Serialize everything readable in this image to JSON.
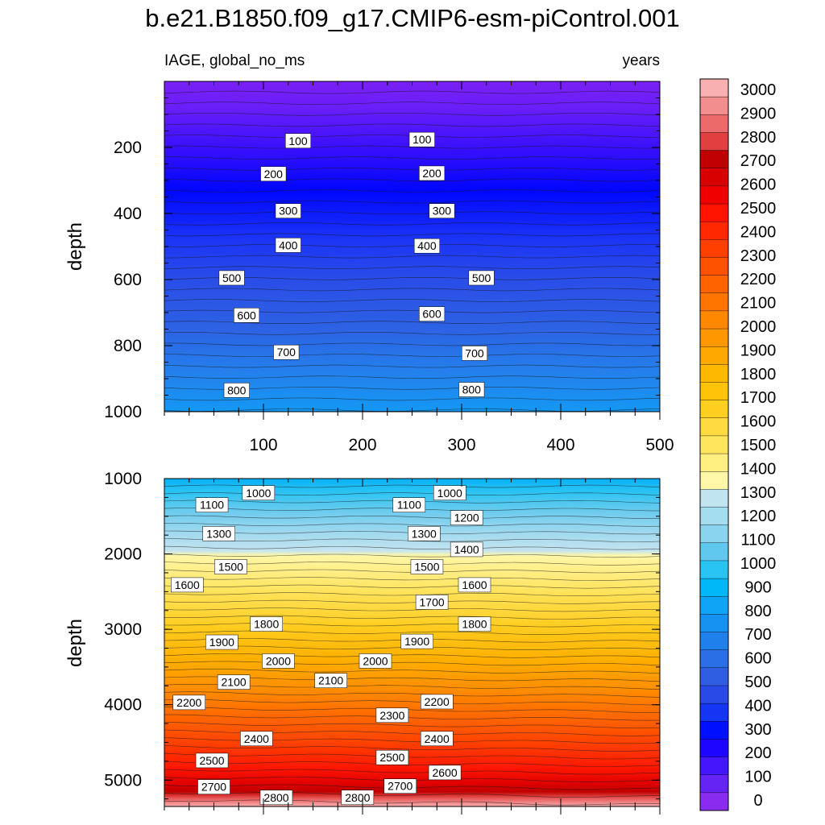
{
  "title": "b.e21.B1850.f09_g17.CMIP6-esm-piControl.001",
  "chart_data": {
    "type": "contour",
    "variable": "IAGE, global_no_ms",
    "units": "years",
    "color_levels": [
      0,
      100,
      200,
      300,
      400,
      500,
      600,
      700,
      800,
      900,
      1000,
      1100,
      1200,
      1300,
      1400,
      1500,
      1600,
      1700,
      1800,
      1900,
      2000,
      2100,
      2200,
      2300,
      2400,
      2500,
      2600,
      2700,
      2800,
      2900,
      3000
    ],
    "colorbar_labels": [
      "0",
      "100",
      "200",
      "300",
      "400",
      "500",
      "600",
      "700",
      "800",
      "900",
      "1000",
      "1100",
      "1200",
      "1300",
      "1400",
      "1500",
      "1600",
      "1700",
      "1800",
      "1900",
      "2000",
      "2100",
      "2200",
      "2300",
      "2400",
      "2500",
      "2600",
      "2700",
      "2800",
      "2900",
      "3000"
    ],
    "colorbar_colors": [
      "#8a2cf0",
      "#6624f4",
      "#4316fb",
      "#1d05ff",
      "#0010ff",
      "#1436f4",
      "#2a4ae8",
      "#2f5ee3",
      "#2a6fe6",
      "#1f80ec",
      "#1692f2",
      "#10a4f6",
      "#00b8f8",
      "#2ac4f3",
      "#60c8ef",
      "#8ad4ef",
      "#a4dcf0",
      "#c0e4f0",
      "#fff7a8",
      "#ffee80",
      "#ffe45e",
      "#ffda40",
      "#ffcf20",
      "#ffc30a",
      "#ffb800",
      "#ffa900",
      "#ff9800",
      "#ff8800",
      "#ff7500",
      "#ff6300",
      "#ff5200",
      "#ff3f00",
      "#ff2800",
      "#ff1200",
      "#f00000",
      "#d80000",
      "#c00000",
      "#e04040",
      "#ec6a6a",
      "#f28e8e",
      "#f8b0b0"
    ],
    "top_panel": {
      "ylabel": "depth",
      "ylim": [
        0,
        1000
      ],
      "y_ticks": [
        "200",
        "400",
        "600",
        "800",
        "1000"
      ],
      "xlim": [
        0,
        500
      ],
      "x_ticks": [
        "100",
        "200",
        "300",
        "400",
        "500"
      ],
      "contour_labels": [
        {
          "text": "100",
          "x": 135,
          "d": 180
        },
        {
          "text": "100",
          "x": 260,
          "d": 176
        },
        {
          "text": "200",
          "x": 110,
          "d": 280
        },
        {
          "text": "200",
          "x": 270,
          "d": 278
        },
        {
          "text": "300",
          "x": 125,
          "d": 392
        },
        {
          "text": "300",
          "x": 280,
          "d": 392
        },
        {
          "text": "400",
          "x": 125,
          "d": 496
        },
        {
          "text": "400",
          "x": 265,
          "d": 498
        },
        {
          "text": "500",
          "x": 68,
          "d": 595
        },
        {
          "text": "500",
          "x": 320,
          "d": 595
        },
        {
          "text": "600",
          "x": 83,
          "d": 708
        },
        {
          "text": "600",
          "x": 270,
          "d": 704
        },
        {
          "text": "700",
          "x": 123,
          "d": 820
        },
        {
          "text": "700",
          "x": 313,
          "d": 823
        },
        {
          "text": "800",
          "x": 73,
          "d": 935
        },
        {
          "text": "800",
          "x": 310,
          "d": 933
        }
      ]
    },
    "bottom_panel": {
      "ylabel": "depth",
      "ylim": [
        1000,
        5350
      ],
      "y_ticks": [
        "1000",
        "2000",
        "3000",
        "4000",
        "5000"
      ],
      "contour_labels": [
        {
          "text": "1000",
          "x": 95,
          "d": 1190
        },
        {
          "text": "1000",
          "x": 288,
          "d": 1190
        },
        {
          "text": "1100",
          "x": 48,
          "d": 1350
        },
        {
          "text": "1100",
          "x": 247,
          "d": 1350
        },
        {
          "text": "1200",
          "x": 305,
          "d": 1520
        },
        {
          "text": "1300",
          "x": 55,
          "d": 1730
        },
        {
          "text": "1300",
          "x": 262,
          "d": 1730
        },
        {
          "text": "1400",
          "x": 305,
          "d": 1940
        },
        {
          "text": "1500",
          "x": 67,
          "d": 2170
        },
        {
          "text": "1500",
          "x": 265,
          "d": 2170
        },
        {
          "text": "1600",
          "x": 23,
          "d": 2410
        },
        {
          "text": "1600",
          "x": 313,
          "d": 2410
        },
        {
          "text": "1700",
          "x": 270,
          "d": 2640
        },
        {
          "text": "1800",
          "x": 103,
          "d": 2930
        },
        {
          "text": "1800",
          "x": 313,
          "d": 2930
        },
        {
          "text": "1900",
          "x": 58,
          "d": 3170
        },
        {
          "text": "1900",
          "x": 255,
          "d": 3160
        },
        {
          "text": "2000",
          "x": 115,
          "d": 3420
        },
        {
          "text": "2000",
          "x": 213,
          "d": 3420
        },
        {
          "text": "2100",
          "x": 70,
          "d": 3700
        },
        {
          "text": "2100",
          "x": 168,
          "d": 3680
        },
        {
          "text": "2200",
          "x": 25,
          "d": 3970
        },
        {
          "text": "2200",
          "x": 275,
          "d": 3960
        },
        {
          "text": "2300",
          "x": 230,
          "d": 4140
        },
        {
          "text": "2400",
          "x": 93,
          "d": 4450
        },
        {
          "text": "2400",
          "x": 275,
          "d": 4450
        },
        {
          "text": "2500",
          "x": 48,
          "d": 4740
        },
        {
          "text": "2500",
          "x": 230,
          "d": 4700
        },
        {
          "text": "2600",
          "x": 283,
          "d": 4900
        },
        {
          "text": "2700",
          "x": 50,
          "d": 5090
        },
        {
          "text": "2700",
          "x": 238,
          "d": 5080
        },
        {
          "text": "2800",
          "x": 113,
          "d": 5230
        },
        {
          "text": "2800",
          "x": 195,
          "d": 5230
        }
      ]
    }
  }
}
